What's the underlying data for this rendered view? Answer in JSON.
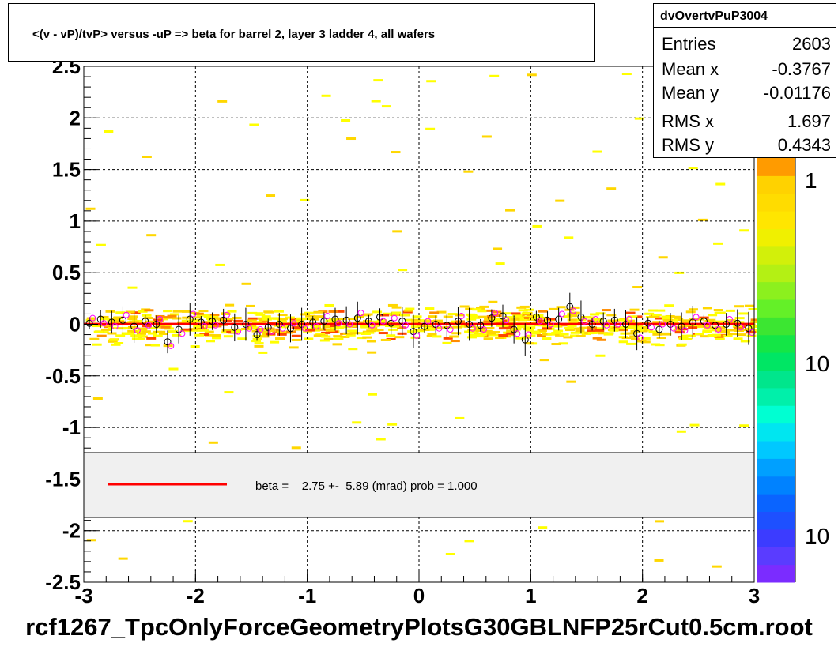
{
  "chart_data": {
    "type": "heatmap",
    "title": "<(v - vP)/tvP> versus  -uP => beta for barrel 2, layer 3 ladder 4, all wafers",
    "xlabel": "",
    "ylabel": "",
    "xlim": [
      -3,
      3
    ],
    "ylim": [
      -2.5,
      2.5
    ],
    "x_ticks": [
      "-3",
      "-2",
      "-1",
      "0",
      "1",
      "2",
      "3"
    ],
    "y_ticks": [
      "-2.5",
      "-2",
      "-1.5",
      "-1",
      "-0.5",
      "0",
      "0.5",
      "1",
      "1.5",
      "2",
      "2.5"
    ],
    "grid": true,
    "palette_labels": [
      "1",
      "10",
      "10"
    ],
    "fit_line": {
      "x": [
        -3,
        3
      ],
      "y": [
        0.00275,
        0.00275
      ],
      "color": "#ff0000"
    },
    "profile_points": {
      "x": [
        -2.95,
        -2.85,
        -2.75,
        -2.65,
        -2.55,
        -2.45,
        -2.35,
        -2.25,
        -2.15,
        -2.05,
        -1.95,
        -1.85,
        -1.75,
        -1.65,
        -1.55,
        -1.45,
        -1.35,
        -1.25,
        -1.15,
        -1.05,
        -0.95,
        -0.85,
        -0.75,
        -0.65,
        -0.55,
        -0.45,
        -0.35,
        -0.25,
        -0.15,
        -0.05,
        0.05,
        0.15,
        0.25,
        0.35,
        0.45,
        0.55,
        0.65,
        0.75,
        0.85,
        0.95,
        1.05,
        1.15,
        1.25,
        1.35,
        1.45,
        1.55,
        1.65,
        1.75,
        1.85,
        1.95,
        2.05,
        2.15,
        2.25,
        2.35,
        2.45,
        2.55,
        2.65,
        2.75,
        2.85,
        2.95
      ],
      "y": [
        0.01,
        0.05,
        0.02,
        0.04,
        -0.02,
        0.03,
        0.0,
        -0.17,
        -0.05,
        0.05,
        0.02,
        0.03,
        0.04,
        -0.03,
        0.0,
        -0.1,
        -0.03,
        0.0,
        -0.04,
        0.0,
        0.02,
        0.03,
        0.05,
        0.04,
        0.06,
        0.03,
        0.07,
        0.01,
        0.03,
        -0.07,
        -0.02,
        0.0,
        -0.01,
        0.03,
        0.0,
        -0.01,
        0.06,
        0.08,
        -0.05,
        -0.15,
        0.07,
        0.04,
        0.05,
        0.17,
        0.07,
        0.0,
        0.03,
        0.04,
        0.0,
        -0.09,
        0.01,
        -0.05,
        0.0,
        -0.02,
        0.02,
        0.03,
        -0.01,
        0.0,
        0.01,
        -0.04
      ],
      "series": [
        {
          "name": "",
          "color": "#000000"
        },
        {
          "name": "",
          "color": "#ff00ff"
        }
      ]
    },
    "heatmap_colors": [
      "#ffff00",
      "#ffd700",
      "#ff8c00",
      "#ff4500"
    ]
  },
  "stats": {
    "name": "dvOvertvPuP3004",
    "rows": [
      {
        "label": "Entries",
        "value": "2603"
      },
      {
        "label": "Mean x",
        "value": "-0.3767"
      },
      {
        "label": "Mean y",
        "value": "-0.01176"
      },
      {
        "label": "RMS x",
        "value": "1.697"
      },
      {
        "label": "RMS y",
        "value": "0.4343"
      }
    ]
  },
  "legend": {
    "entry": "beta =    2.75 +-  5.89 (mrad) prob = 1.000",
    "line_color": "#ff0000"
  },
  "footer": {
    "filename": "rcf1267_TpcOnlyForceGeometryPlotsG30GBLNFP25rCut0.5cm.root"
  }
}
